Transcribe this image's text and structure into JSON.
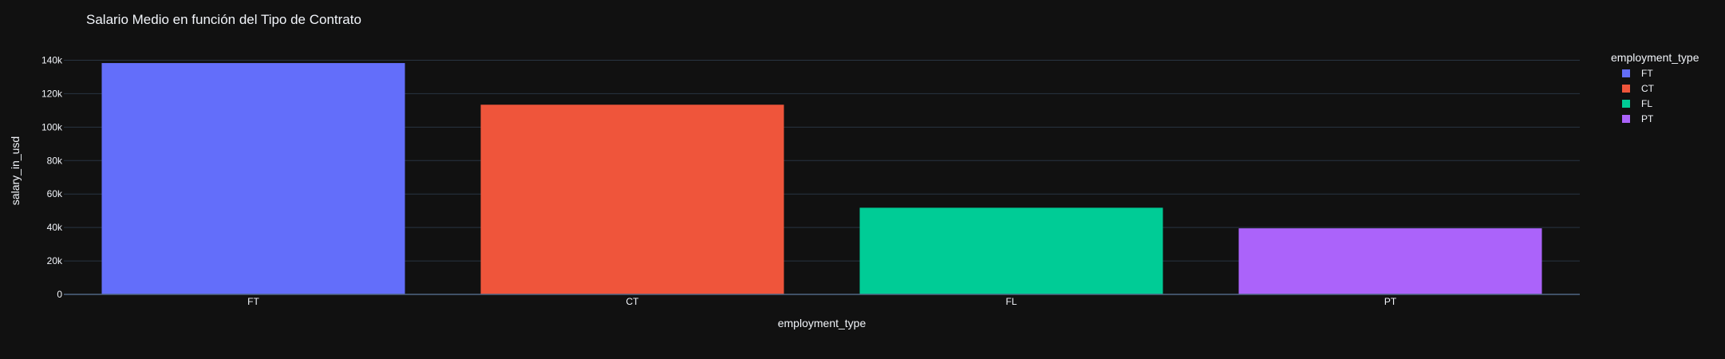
{
  "chart_data": {
    "type": "bar",
    "title": "Salario Medio en función del Tipo de Contrato",
    "xlabel": "employment_type",
    "ylabel": "salary_in_usd",
    "categories": [
      "FT",
      "CT",
      "FL",
      "PT"
    ],
    "values": [
      138300,
      113400,
      51800,
      39500
    ],
    "ylim": [
      0,
      145000
    ],
    "yticks": [
      0,
      20000,
      40000,
      60000,
      80000,
      100000,
      120000,
      140000
    ],
    "ytick_labels": [
      "0",
      "20k",
      "40k",
      "60k",
      "80k",
      "100k",
      "120k",
      "140k"
    ],
    "grid": true,
    "legend": {
      "title": "employment_type",
      "placement": "right",
      "items": [
        "FT",
        "CT",
        "FL",
        "PT"
      ]
    },
    "colors": [
      "#636efa",
      "#ef553b",
      "#00cc96",
      "#ab63fa"
    ],
    "background": "#111111",
    "grid_color": "#283442"
  }
}
